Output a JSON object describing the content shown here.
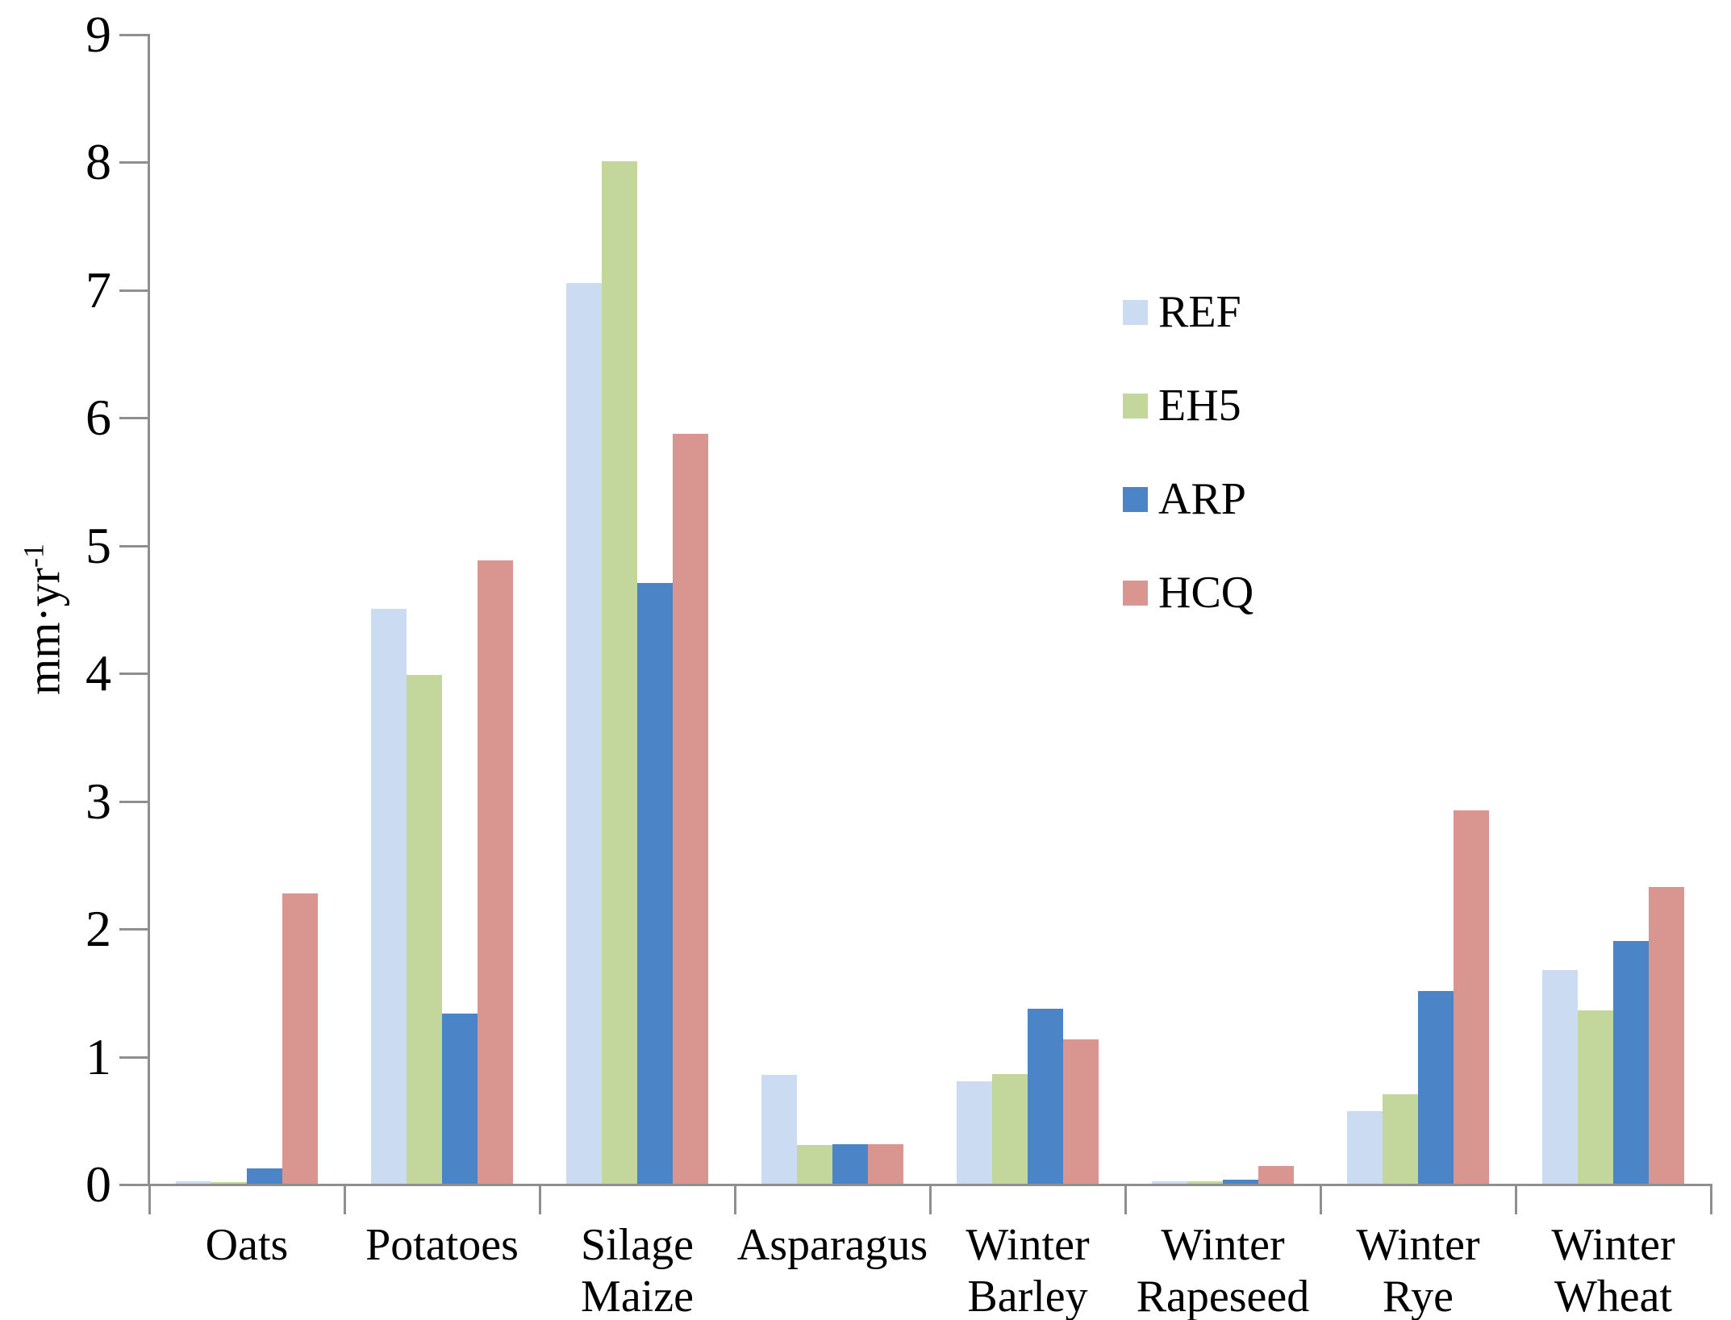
{
  "chart_data": {
    "type": "bar",
    "title": "",
    "xlabel": "",
    "ylabel": "mm·yr⁻¹",
    "ylabel_base": "mm·yr",
    "ylabel_sup": "-1",
    "ylim": [
      0,
      9
    ],
    "yticks": [
      0,
      1,
      2,
      3,
      4,
      5,
      6,
      7,
      8,
      9
    ],
    "grid": false,
    "legend_position": "upper right",
    "axis_color": "#8f8f8f",
    "categories": [
      "Oats",
      "Potatoes",
      "Silage Maize",
      "Asparagus",
      "Winter Barley",
      "Winter Rapeseed",
      "Winter Rye",
      "Winter Wheat"
    ],
    "category_label_lines": [
      [
        "Oats"
      ],
      [
        "Potatoes"
      ],
      [
        "Silage",
        "Maize"
      ],
      [
        "Asparagus"
      ],
      [
        "Winter",
        "Barley"
      ],
      [
        "Winter",
        "Rapeseed"
      ],
      [
        "Winter",
        "Rye"
      ],
      [
        "Winter",
        "Wheat"
      ]
    ],
    "series": [
      {
        "name": "REF",
        "color": "#cbdcf2",
        "values": [
          0.02,
          4.5,
          7.05,
          0.85,
          0.8,
          0.02,
          0.57,
          1.67
        ]
      },
      {
        "name": "EH5",
        "color": "#c3d69b",
        "values": [
          0.01,
          3.98,
          8.0,
          0.3,
          0.86,
          0.02,
          0.7,
          1.36
        ]
      },
      {
        "name": "ARP",
        "color": "#4c84c8",
        "values": [
          0.12,
          1.33,
          4.7,
          0.31,
          1.37,
          0.03,
          1.51,
          1.9
        ]
      },
      {
        "name": "HCQ",
        "color": "#d99590",
        "values": [
          2.27,
          4.88,
          5.87,
          0.31,
          1.13,
          0.14,
          2.92,
          2.32
        ]
      }
    ]
  }
}
